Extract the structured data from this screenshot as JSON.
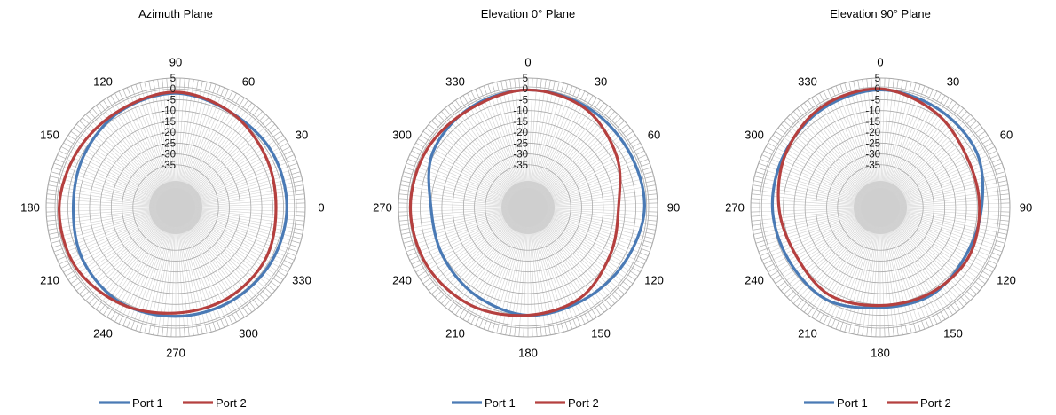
{
  "chart_data": [
    {
      "type": "line",
      "subtype": "polar",
      "title": "Azimuth Plane",
      "angle_labels": [
        "0",
        "30",
        "60",
        "90",
        "120",
        "150",
        "180",
        "210",
        "240",
        "270",
        "300",
        "330"
      ],
      "angle_label_direction": "counterclockwise",
      "zero_position": "right",
      "radial_ticks": [
        "5",
        "0",
        "-5",
        "-10",
        "-15",
        "-20",
        "-25",
        "-30",
        "-35"
      ],
      "rlim": [
        -40,
        5
      ],
      "angles_deg": [
        0,
        30,
        60,
        90,
        120,
        150,
        180,
        210,
        240,
        270,
        300,
        330
      ],
      "series": [
        {
          "name": "Port 1",
          "color": "#4a7ab5",
          "values": [
            -3.5,
            -3.5,
            -4,
            -2,
            -3.5,
            -6,
            -7.5,
            -5.5,
            -4,
            -4.5,
            -4.5,
            -4
          ]
        },
        {
          "name": "Port 2",
          "color": "#b5403f",
          "values": [
            -8.5,
            -7,
            -4,
            -1.5,
            -3,
            -2.5,
            -1,
            -1,
            -3.5,
            -6,
            -6.5,
            -7
          ]
        }
      ],
      "legend": {
        "position": "bottom",
        "entries": [
          "Port 1",
          "Port 2"
        ]
      },
      "grid": true
    },
    {
      "type": "line",
      "subtype": "polar",
      "title": "Elevation 0° Plane",
      "angle_labels": [
        "0",
        "30",
        "60",
        "90",
        "120",
        "150",
        "180",
        "210",
        "240",
        "270",
        "300",
        "330"
      ],
      "angle_label_direction": "clockwise",
      "zero_position": "top",
      "radial_ticks": [
        "5",
        "0",
        "-5",
        "-10",
        "-15",
        "-20",
        "-25",
        "-30",
        "-35"
      ],
      "rlim": [
        -40,
        5
      ],
      "angles_deg": [
        0,
        30,
        60,
        90,
        120,
        150,
        180,
        210,
        240,
        270,
        300,
        330
      ],
      "series": [
        {
          "name": "Port 1",
          "color": "#4a7ab5",
          "values": [
            -0.5,
            -1,
            -1.5,
            -1,
            -3.5,
            -5,
            -5,
            -7.5,
            -9.5,
            -10,
            -4,
            -1.5
          ]
        },
        {
          "name": "Port 2",
          "color": "#b5403f",
          "values": [
            -0.5,
            -2,
            -7.5,
            -13,
            -11,
            -6.5,
            -5,
            -2.5,
            -1,
            -0.5,
            -1,
            -2
          ]
        }
      ],
      "legend": {
        "position": "bottom",
        "entries": [
          "Port 1",
          "Port 2"
        ]
      },
      "grid": true
    },
    {
      "type": "line",
      "subtype": "polar",
      "title": "Elevation 90° Plane",
      "angle_labels": [
        "0",
        "30",
        "60",
        "90",
        "120",
        "150",
        "180",
        "210",
        "240",
        "270",
        "300",
        "330"
      ],
      "angle_label_direction": "clockwise",
      "zero_position": "top",
      "radial_ticks": [
        "5",
        "0",
        "-5",
        "-10",
        "-15",
        "-20",
        "-25",
        "-30",
        "-35"
      ],
      "rlim": [
        -40,
        5
      ],
      "angles_deg": [
        0,
        30,
        60,
        90,
        120,
        150,
        180,
        210,
        240,
        270,
        300,
        330
      ],
      "series": [
        {
          "name": "Port 1",
          "color": "#4a7ab5",
          "values": [
            -0.5,
            -2,
            -3.5,
            -8,
            -9.5,
            -8,
            -8.5,
            -5.5,
            -6,
            -5,
            -4,
            -2
          ]
        },
        {
          "name": "Port 2",
          "color": "#b5403f",
          "values": [
            0,
            -4,
            -8.5,
            -9,
            -8,
            -9,
            -9.5,
            -8,
            -10,
            -8,
            -4.5,
            -1
          ]
        }
      ],
      "legend": {
        "position": "bottom",
        "entries": [
          "Port 1",
          "Port 2"
        ]
      },
      "grid": true
    }
  ]
}
